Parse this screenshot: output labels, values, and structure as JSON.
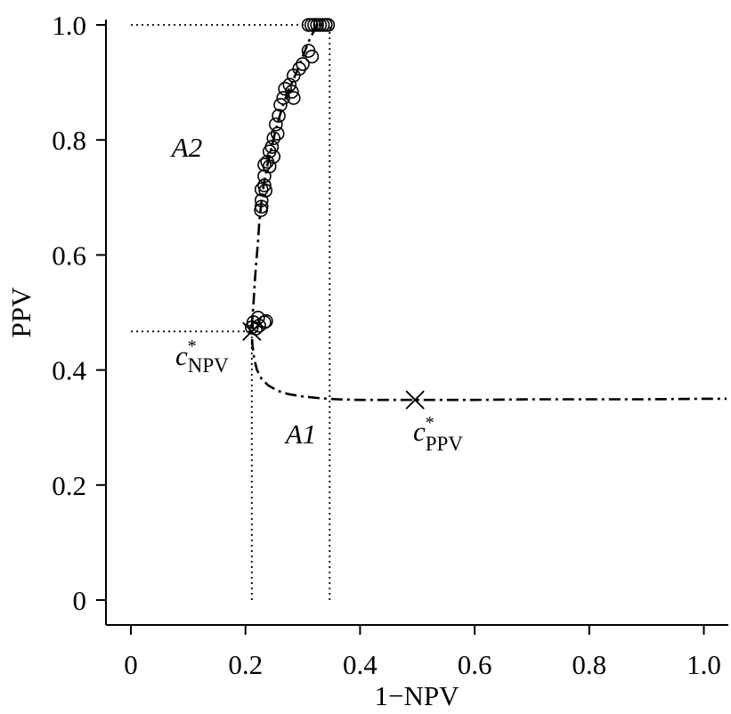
{
  "chart_data": {
    "type": "scatter",
    "xlabel": "1−NPV",
    "ylabel": "PPV",
    "xlim": [
      0,
      1.04
    ],
    "ylim": [
      0,
      1.0
    ],
    "grid": false,
    "x_ticks": [
      0,
      0.2,
      0.4,
      0.6,
      0.8,
      1.0
    ],
    "x_tick_labels": [
      "0",
      "0.2",
      "0.4",
      "0.6",
      "0.8",
      "1.0"
    ],
    "y_ticks": [
      0,
      0.2,
      0.4,
      0.6,
      0.8,
      1.0
    ],
    "y_tick_labels": [
      "0",
      "0.2",
      "0.4",
      "0.6",
      "0.8",
      "1.0"
    ],
    "series": [
      {
        "kind": "line",
        "line_style": "dash-dot",
        "color": "#000000",
        "points": [
          [
            0.325,
            1.0
          ],
          [
            0.312,
            0.975
          ],
          [
            0.3,
            0.945
          ],
          [
            0.288,
            0.915
          ],
          [
            0.276,
            0.888
          ],
          [
            0.266,
            0.862
          ],
          [
            0.258,
            0.836
          ],
          [
            0.251,
            0.81
          ],
          [
            0.245,
            0.785
          ],
          [
            0.239,
            0.76
          ],
          [
            0.234,
            0.735
          ],
          [
            0.23,
            0.71
          ],
          [
            0.227,
            0.685
          ],
          [
            0.224,
            0.655
          ],
          [
            0.222,
            0.625
          ],
          [
            0.219,
            0.59
          ],
          [
            0.216,
            0.55
          ],
          [
            0.214,
            0.515
          ],
          [
            0.212,
            0.49
          ],
          [
            0.211,
            0.467
          ],
          [
            0.212,
            0.445
          ],
          [
            0.215,
            0.42
          ],
          [
            0.22,
            0.4
          ],
          [
            0.228,
            0.385
          ],
          [
            0.24,
            0.373
          ],
          [
            0.256,
            0.364
          ],
          [
            0.275,
            0.358
          ],
          [
            0.3,
            0.354
          ],
          [
            0.33,
            0.351
          ],
          [
            0.36,
            0.349
          ],
          [
            0.4,
            0.348
          ],
          [
            0.45,
            0.348
          ],
          [
            0.5,
            0.348
          ],
          [
            0.6,
            0.348
          ],
          [
            0.7,
            0.349
          ],
          [
            0.8,
            0.349
          ],
          [
            0.9,
            0.349
          ],
          [
            1.0,
            0.35
          ],
          [
            1.04,
            0.35
          ]
        ]
      },
      {
        "kind": "scatter",
        "marker": "open-circle",
        "color": "#000000",
        "points": [
          [
            0.31,
            1.0
          ],
          [
            0.315,
            1.0
          ],
          [
            0.32,
            1.0
          ],
          [
            0.325,
            1.0
          ],
          [
            0.33,
            1.0
          ],
          [
            0.335,
            1.0
          ],
          [
            0.34,
            1.0
          ],
          [
            0.344,
            1.0
          ],
          [
            0.31,
            0.955
          ],
          [
            0.316,
            0.945
          ],
          [
            0.3,
            0.932
          ],
          [
            0.294,
            0.924
          ],
          [
            0.284,
            0.912
          ],
          [
            0.277,
            0.896
          ],
          [
            0.269,
            0.889
          ],
          [
            0.281,
            0.884
          ],
          [
            0.266,
            0.873
          ],
          [
            0.284,
            0.873
          ],
          [
            0.261,
            0.861
          ],
          [
            0.258,
            0.842
          ],
          [
            0.253,
            0.827
          ],
          [
            0.256,
            0.811
          ],
          [
            0.249,
            0.803
          ],
          [
            0.246,
            0.788
          ],
          [
            0.242,
            0.78
          ],
          [
            0.249,
            0.771
          ],
          [
            0.238,
            0.762
          ],
          [
            0.233,
            0.757
          ],
          [
            0.242,
            0.754
          ],
          [
            0.233,
            0.737
          ],
          [
            0.233,
            0.721
          ],
          [
            0.228,
            0.714
          ],
          [
            0.235,
            0.712
          ],
          [
            0.228,
            0.695
          ],
          [
            0.228,
            0.684
          ],
          [
            0.227,
            0.678
          ],
          [
            0.222,
            0.491
          ],
          [
            0.214,
            0.483
          ],
          [
            0.224,
            0.477
          ],
          [
            0.233,
            0.483
          ],
          [
            0.236,
            0.485
          ],
          [
            0.218,
            0.472
          ],
          [
            0.211,
            0.474
          ]
        ]
      }
    ],
    "cutoffs": [
      {
        "marker": "cross",
        "x": 0.211,
        "y": 0.467,
        "label": {
          "base": "c",
          "sup": "*",
          "sub": "NPV"
        }
      },
      {
        "marker": "cross",
        "x": 0.496,
        "y": 0.348,
        "label": {
          "base": "c",
          "sup": "*",
          "sub": "PPV"
        }
      }
    ],
    "reference_lines": [
      {
        "style": "dotted",
        "from": [
          0,
          1.0
        ],
        "to": [
          0.305,
          1.0
        ]
      },
      {
        "style": "dotted",
        "from": [
          0.347,
          0
        ],
        "to": [
          0.347,
          1.0
        ]
      },
      {
        "style": "dotted",
        "from": [
          0,
          0.467
        ],
        "to": [
          0.211,
          0.467
        ]
      },
      {
        "style": "dotted",
        "from": [
          0.211,
          0
        ],
        "to": [
          0.211,
          0.467
        ]
      }
    ],
    "region_labels": [
      "A2",
      "A1"
    ]
  }
}
